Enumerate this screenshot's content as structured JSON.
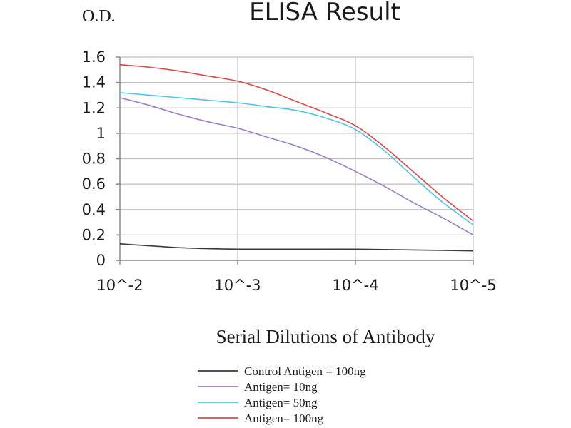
{
  "chart_data": {
    "type": "line",
    "title": "ELISA Result",
    "ylabel": "O.D.",
    "xlabel": "Serial Dilutions of Antibody",
    "categories": [
      "10^-2",
      "10^-3",
      "10^-4",
      "10^-5"
    ],
    "ylim": [
      0,
      1.6
    ],
    "yticks": [
      "0",
      "0.2",
      "0.4",
      "0.6",
      "0.8",
      "1",
      "1.2",
      "1.4",
      "1.6"
    ],
    "grid": true,
    "legend_position": "bottom",
    "series": [
      {
        "name": "Control Antigen = 100ng",
        "color": "#3a3a3a",
        "x": [
          0,
          0.25,
          0.5,
          0.75,
          1,
          1.5,
          2,
          2.5,
          3
        ],
        "values": [
          0.13,
          0.115,
          0.1,
          0.092,
          0.088,
          0.088,
          0.088,
          0.082,
          0.075
        ]
      },
      {
        "name": "Antigen= 10ng",
        "color": "#9b7fc4",
        "x": [
          0,
          0.25,
          0.5,
          0.75,
          1,
          1.25,
          1.5,
          1.75,
          2,
          2.25,
          2.5,
          2.75,
          3
        ],
        "values": [
          1.28,
          1.22,
          1.15,
          1.09,
          1.04,
          0.97,
          0.9,
          0.81,
          0.7,
          0.58,
          0.45,
          0.33,
          0.2
        ]
      },
      {
        "name": "Antigen= 50ng",
        "color": "#4cc6e6",
        "x": [
          0,
          0.25,
          0.5,
          0.75,
          1,
          1.25,
          1.5,
          1.75,
          2,
          2.25,
          2.5,
          2.75,
          3
        ],
        "values": [
          1.32,
          1.3,
          1.28,
          1.26,
          1.24,
          1.21,
          1.18,
          1.12,
          1.03,
          0.86,
          0.65,
          0.45,
          0.28
        ]
      },
      {
        "name": "Antigen= 100ng",
        "color": "#d94b4b",
        "x": [
          0,
          0.25,
          0.5,
          0.75,
          1,
          1.25,
          1.5,
          1.75,
          2,
          2.25,
          2.5,
          2.75,
          3
        ],
        "values": [
          1.54,
          1.52,
          1.49,
          1.45,
          1.41,
          1.34,
          1.25,
          1.16,
          1.06,
          0.89,
          0.69,
          0.49,
          0.31
        ]
      }
    ]
  }
}
